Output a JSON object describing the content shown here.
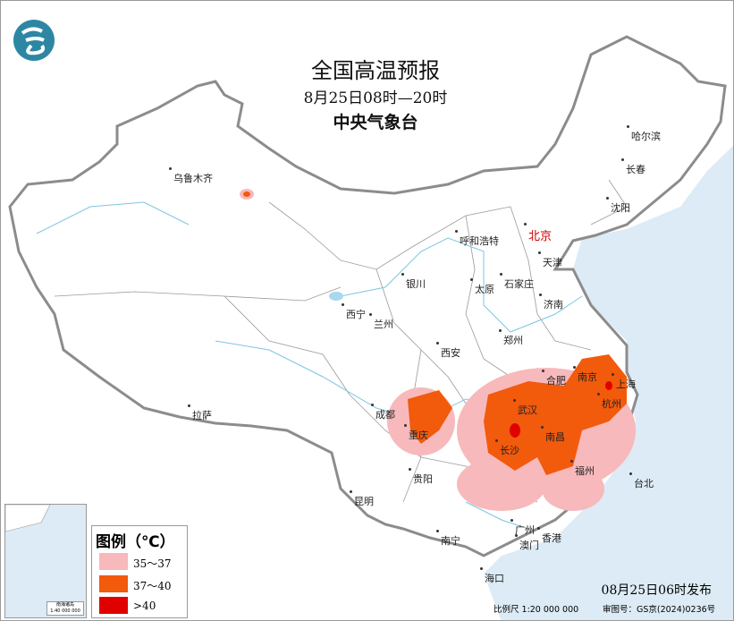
{
  "header": {
    "title": "全国高温预报",
    "period": "8月25日08时—20时",
    "issuer": "中央气象台",
    "logo": "cma-logo-icon"
  },
  "cities": {
    "urumqi": "乌鲁木齐",
    "harbin": "哈尔滨",
    "changchun": "长春",
    "shenyang": "沈阳",
    "hohhot": "呼和浩特",
    "beijing": "北京",
    "tianjin": "天津",
    "yinchuan": "银川",
    "taiyuan": "太原",
    "shijiazhuang": "石家庄",
    "jinan": "济南",
    "xining": "西宁",
    "lanzhou": "兰州",
    "zhengzhou": "郑州",
    "xian": "西安",
    "hefei": "合肥",
    "nanjing": "南京",
    "shanghai": "上海",
    "chengdu": "成都",
    "wuhan": "武汉",
    "hangzhou": "杭州",
    "lhasa": "拉萨",
    "chongqing": "重庆",
    "nanchang": "南昌",
    "changsha": "长沙",
    "fuzhou": "福州",
    "taipei": "台北",
    "guiyang": "贵阳",
    "kunming": "昆明",
    "nanning": "南宁",
    "guangzhou": "广州",
    "macau": "澳门",
    "hongkong": "香港",
    "haikou": "海口"
  },
  "legend": {
    "title": "图例（℃）",
    "items": [
      {
        "label": "35～37",
        "color": "#f7b9bb"
      },
      {
        "label": "37～40",
        "color": "#f25a0c"
      },
      {
        "label": ">40",
        "color": "#e00000"
      }
    ]
  },
  "inset": {
    "caption": "南海诸岛",
    "scale": "1:40 000 000"
  },
  "footer": {
    "published": "08月25日06时发布",
    "scale": "比例尺 1:20 000 000",
    "approval": "审图号：GS京(2024)0236号"
  },
  "colors": {
    "sea": "#dcebf5",
    "border": "#8c8c8c",
    "river": "#7cc5e3",
    "heat_35_37": "#f7b9bb",
    "heat_37_40": "#f25a0c",
    "heat_40": "#e00000"
  }
}
